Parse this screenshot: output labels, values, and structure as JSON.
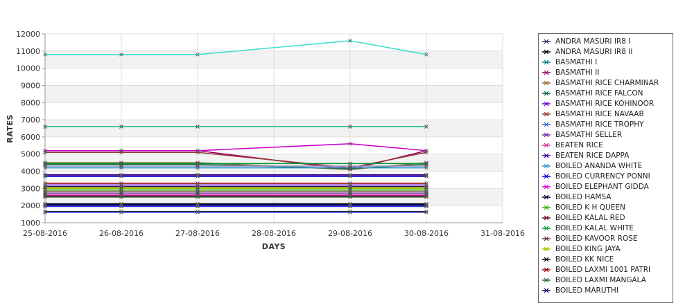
{
  "chart_data": {
    "type": "line",
    "title": "",
    "xlabel": "DAYS",
    "ylabel": "RATES",
    "x_ticks": [
      "25-08-2016",
      "26-08-2016",
      "27-08-2016",
      "28-08-2016",
      "29-08-2016",
      "30-08-2016",
      "31-08-2016"
    ],
    "y_ticks": [
      1000,
      2000,
      3000,
      4000,
      5000,
      6000,
      7000,
      8000,
      9000,
      10000,
      11000,
      12000
    ],
    "ylim": [
      1000,
      12000
    ],
    "grid": true,
    "legend_position": "right",
    "x_points": [
      "25-08-2016",
      "26-08-2016",
      "27-08-2016",
      "29-08-2016",
      "30-08-2016"
    ],
    "series": [
      {
        "name": "ANDRA MASURI IR8 I",
        "color": "#333366",
        "values": [
          2000,
          2000,
          2000,
          2000,
          2000
        ]
      },
      {
        "name": "ANDRA MASURI IR8 II",
        "color": "#000000",
        "values": [
          2100,
          2100,
          2100,
          2100,
          2100
        ]
      },
      {
        "name": "BASMATHI I",
        "color": "#008080",
        "values": [
          6600,
          6600,
          6600,
          6600,
          6600
        ]
      },
      {
        "name": "BASMATHI II",
        "color": "#990066",
        "values": [
          5200,
          5200,
          5200,
          4100,
          5200
        ]
      },
      {
        "name": "BASMATHI RICE CHARMINAR",
        "color": "#996633",
        "values": [
          4500,
          4500,
          4500,
          4100,
          4500
        ]
      },
      {
        "name": "BASMATHI RICE FALCON",
        "color": "#006633",
        "values": [
          4400,
          4400,
          4400,
          4150,
          4400
        ]
      },
      {
        "name": "BASMATHI RICE KOHINOOR",
        "color": "#6600CC",
        "values": [
          3200,
          3200,
          3200,
          3200,
          3200
        ]
      },
      {
        "name": "BASMATHI RICE NAVAAB",
        "color": "#993333",
        "values": [
          5100,
          5100,
          5100,
          4200,
          5100
        ]
      },
      {
        "name": "BASMATHI RICE TROPHY",
        "color": "#3366CC",
        "values": [
          2700,
          2700,
          2700,
          2700,
          2700
        ]
      },
      {
        "name": "BASMATHI SELLER",
        "color": "#663399",
        "values": [
          3750,
          3750,
          3750,
          3750,
          3750
        ]
      },
      {
        "name": "BEATEN RICE",
        "color": "#CC3399",
        "values": [
          2600,
          2600,
          2600,
          2600,
          2600
        ]
      },
      {
        "name": "BEATEN RICE DAPPA",
        "color": "#330099",
        "values": [
          3800,
          3800,
          3800,
          3800,
          3800
        ]
      },
      {
        "name": "BOILED ANANDA WHITE",
        "color": "#3399CC",
        "values": [
          4200,
          4200,
          4200,
          4200,
          4200
        ]
      },
      {
        "name": "BOILED CURRENCY PONNI",
        "color": "#0000CC",
        "values": [
          3700,
          3700,
          3700,
          3700,
          3700
        ]
      },
      {
        "name": "BOILED ELEPHANT GIDDA",
        "color": "#CC00CC",
        "values": [
          5200,
          5200,
          5200,
          5600,
          5200
        ]
      },
      {
        "name": "BOILED HAMSA",
        "color": "#000033",
        "values": [
          3100,
          3100,
          3100,
          3100,
          3100
        ]
      },
      {
        "name": "BOILED K H QUEEN",
        "color": "#33AA00",
        "values": [
          2900,
          2900,
          2900,
          2900,
          2900
        ]
      },
      {
        "name": "BOILED KALAL RED",
        "color": "#660033",
        "values": [
          2550,
          2550,
          2550,
          2550,
          2550
        ]
      },
      {
        "name": "BOILED KALAL WHITE",
        "color": "#009933",
        "values": [
          4450,
          4450,
          4450,
          4450,
          4450
        ]
      },
      {
        "name": "BOILED KAVOOR ROSE",
        "color": "#663333",
        "values": [
          2800,
          2800,
          2800,
          2800,
          2800
        ]
      },
      {
        "name": "BOILED KING JAYA",
        "color": "#99CC00",
        "values": [
          3000,
          3000,
          3000,
          3000,
          3000
        ]
      },
      {
        "name": "BOILED KK NICE",
        "color": "#000000",
        "values": [
          1650,
          1650,
          1650,
          1650,
          1650
        ]
      },
      {
        "name": "BOILED LAXMI 1001 PATRI",
        "color": "#990000",
        "values": [
          3300,
          3300,
          3300,
          3300,
          3300
        ]
      },
      {
        "name": "BOILED LAXMI MANGALA",
        "color": "#336633",
        "values": [
          2500,
          2500,
          2500,
          2500,
          2500
        ]
      },
      {
        "name": "BOILED MARUTHI",
        "color": "#000066",
        "values": [
          2050,
          2050,
          2050,
          2050,
          2050
        ]
      },
      {
        "name": "",
        "color": "#40E0D0",
        "values": [
          10800,
          10800,
          10800,
          11600,
          10800
        ]
      },
      {
        "name": "",
        "color": "#33CC99",
        "values": [
          6600,
          6600,
          6600,
          6600,
          6600
        ]
      },
      {
        "name": "",
        "color": "#CCCC33",
        "values": [
          3050,
          3050,
          3050,
          3050,
          3050
        ]
      },
      {
        "name": "",
        "color": "#CC99CC",
        "values": [
          2750,
          2750,
          2750,
          2750,
          2750
        ]
      },
      {
        "name": "",
        "color": "#3333FF",
        "values": [
          1950,
          1950,
          1950,
          1950,
          1950
        ]
      },
      {
        "name": "",
        "color": "#9999CC",
        "values": [
          4300,
          4300,
          4300,
          4300,
          4300
        ]
      },
      {
        "name": "",
        "color": "#FF66CC",
        "values": [
          2650,
          2650,
          2650,
          2650,
          2650
        ]
      },
      {
        "name": "",
        "color": "#6666FF",
        "values": [
          1600,
          1600,
          1600,
          1600,
          1600
        ]
      }
    ]
  },
  "colors": {
    "band": "#f2f2f2",
    "grid": "#dddddd",
    "axis": "#999999",
    "marker": "#555555"
  }
}
